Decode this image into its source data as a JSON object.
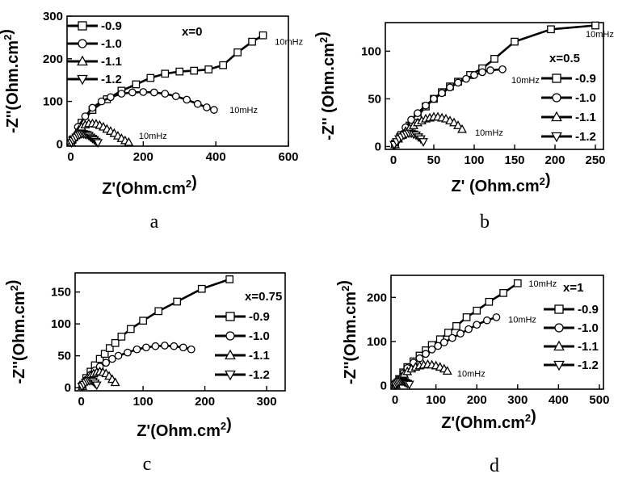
{
  "chart_data": [
    {
      "type": "scatter",
      "panel_label": "a",
      "tag": "x=0",
      "xlabel": "Z'(Ohm.cm²)",
      "ylabel": "-Z''(Ohm.cm²)",
      "xlim": [
        -10,
        600
      ],
      "ylim": [
        -5,
        300
      ],
      "xticks": [
        0,
        200,
        400,
        600
      ],
      "yticks": [
        0,
        100,
        200,
        300
      ],
      "legend_position": "top-left",
      "series": [
        {
          "name": "-0.9",
          "marker": "square",
          "x": [
            5,
            30,
            60,
            100,
            140,
            180,
            220,
            260,
            300,
            340,
            380,
            420,
            460,
            500,
            530
          ],
          "y": [
            10,
            50,
            80,
            105,
            125,
            140,
            155,
            165,
            170,
            172,
            175,
            185,
            215,
            240,
            255
          ]
        },
        {
          "name": "-1.0",
          "marker": "circle",
          "x": [
            5,
            20,
            40,
            60,
            85,
            110,
            140,
            170,
            200,
            230,
            260,
            290,
            320,
            350,
            375,
            395
          ],
          "y": [
            8,
            40,
            65,
            85,
            100,
            110,
            118,
            121,
            122,
            121,
            118,
            112,
            104,
            94,
            86,
            80
          ]
        },
        {
          "name": "-1.1",
          "marker": "triangle-up",
          "x": [
            2,
            8,
            15,
            22,
            30,
            40,
            50,
            60,
            70,
            80,
            90,
            100,
            110,
            120,
            130,
            140,
            150,
            160
          ],
          "y": [
            3,
            15,
            25,
            33,
            40,
            45,
            48,
            48,
            47,
            44,
            40,
            35,
            30,
            25,
            19,
            13,
            8,
            4
          ]
        },
        {
          "name": "-1.2",
          "marker": "triangle-down",
          "x": [
            2,
            6,
            10,
            15,
            20,
            25,
            30,
            35,
            40,
            45,
            50,
            55,
            60,
            65,
            70,
            75
          ],
          "y": [
            3,
            8,
            12,
            16,
            20,
            22,
            24,
            24,
            23,
            22,
            20,
            16,
            13,
            10,
            6,
            3
          ]
        }
      ],
      "annotations": [
        {
          "text": "10mHz",
          "x": 545,
          "y": 240
        },
        {
          "text": "10mHz",
          "x": 420,
          "y": 80
        },
        {
          "text": "10mHz",
          "x": 170,
          "y": 20
        }
      ]
    },
    {
      "type": "scatter",
      "panel_label": "b",
      "tag": "x=0.5",
      "xlabel": "Z' (Ohm.cm²)",
      "ylabel": "-Z'' (Ohm.cm²)",
      "xlim": [
        -10,
        260
      ],
      "ylim": [
        -3,
        130
      ],
      "xticks": [
        0,
        50,
        100,
        150,
        200,
        250
      ],
      "yticks": [
        0,
        50,
        100
      ],
      "legend_position": "right",
      "series": [
        {
          "name": "-0.9",
          "marker": "square",
          "x": [
            2,
            10,
            20,
            30,
            40,
            50,
            60,
            70,
            80,
            95,
            110,
            125,
            150,
            195,
            250
          ],
          "y": [
            3,
            12,
            22,
            32,
            42,
            50,
            57,
            63,
            68,
            75,
            82,
            92,
            110,
            123,
            127
          ]
        },
        {
          "name": "-1.0",
          "marker": "circle",
          "x": [
            2,
            8,
            15,
            22,
            30,
            40,
            50,
            60,
            70,
            80,
            90,
            100,
            110,
            120,
            135
          ],
          "y": [
            2,
            12,
            20,
            28,
            35,
            43,
            50,
            56,
            62,
            67,
            71,
            75,
            78,
            80,
            81
          ]
        },
        {
          "name": "-1.1",
          "marker": "triangle-up",
          "x": [
            2,
            6,
            10,
            15,
            20,
            25,
            30,
            35,
            40,
            45,
            50,
            55,
            60,
            65,
            70,
            75,
            80,
            85
          ],
          "y": [
            2,
            8,
            12,
            16,
            19,
            22,
            25,
            27,
            29,
            30,
            31,
            31,
            30,
            29,
            27,
            25,
            22,
            18
          ]
        },
        {
          "name": "-1.2",
          "marker": "triangle-down",
          "x": [
            1,
            4,
            7,
            10,
            13,
            16,
            19,
            22,
            25,
            28,
            31,
            34,
            37
          ],
          "y": [
            2,
            5,
            8,
            10,
            12,
            13,
            14,
            14,
            13,
            12,
            10,
            8,
            5
          ]
        }
      ],
      "annotations": [
        {
          "text": "10mHz",
          "x": 230,
          "y": 118
        },
        {
          "text": "10mHz",
          "x": 138,
          "y": 70
        },
        {
          "text": "10mHz",
          "x": 93,
          "y": 15
        }
      ]
    },
    {
      "type": "scatter",
      "panel_label": "c",
      "tag": "x=0.75",
      "xlabel": "Z'(Ohm.cm²)",
      "ylabel": "-Z''(Ohm.cm²)",
      "xlim": [
        -10,
        330
      ],
      "ylim": [
        -5,
        180
      ],
      "xticks": [
        0,
        100,
        200,
        300
      ],
      "yticks": [
        0,
        50,
        100,
        150
      ],
      "legend_position": "right",
      "series": [
        {
          "name": "-0.9",
          "marker": "square",
          "x": [
            2,
            8,
            15,
            22,
            30,
            38,
            46,
            55,
            65,
            80,
            100,
            125,
            155,
            195,
            240
          ],
          "y": [
            3,
            15,
            25,
            35,
            45,
            53,
            62,
            70,
            80,
            92,
            105,
            120,
            135,
            155,
            170
          ]
        },
        {
          "name": "-1.0",
          "marker": "circle",
          "x": [
            2,
            8,
            15,
            22,
            30,
            40,
            50,
            60,
            75,
            90,
            105,
            120,
            135,
            150,
            165,
            178
          ],
          "y": [
            2,
            12,
            20,
            27,
            33,
            39,
            45,
            50,
            55,
            60,
            63,
            65,
            66,
            65,
            63,
            60
          ]
        },
        {
          "name": "-1.1",
          "marker": "triangle-up",
          "x": [
            2,
            6,
            10,
            15,
            20,
            25,
            30,
            35,
            40,
            45,
            50,
            55
          ],
          "y": [
            2,
            10,
            15,
            19,
            22,
            24,
            25,
            24,
            22,
            18,
            13,
            8
          ]
        },
        {
          "name": "-1.2",
          "marker": "triangle-down",
          "x": [
            1,
            4,
            7,
            10,
            13,
            16,
            19,
            22,
            25
          ],
          "y": [
            2,
            5,
            8,
            10,
            11,
            11,
            10,
            7,
            4
          ]
        }
      ],
      "annotations": []
    },
    {
      "type": "scatter",
      "panel_label": "d",
      "tag": "x=1",
      "xlabel": "Z'(Ohm.cm²)",
      "ylabel": "-Z''(Ohm.cm²)",
      "xlim": [
        -10,
        510
      ],
      "ylim": [
        -8,
        250
      ],
      "xticks": [
        0,
        100,
        200,
        300,
        400,
        500
      ],
      "yticks": [
        0,
        100,
        200
      ],
      "legend_position": "top-right",
      "series": [
        {
          "name": "-0.9",
          "marker": "square",
          "x": [
            2,
            10,
            20,
            30,
            45,
            60,
            75,
            90,
            110,
            130,
            150,
            175,
            200,
            230,
            265,
            300
          ],
          "y": [
            3,
            15,
            30,
            42,
            55,
            68,
            80,
            92,
            105,
            120,
            135,
            155,
            170,
            190,
            210,
            232
          ]
        },
        {
          "name": "-1.0",
          "marker": "circle",
          "x": [
            2,
            10,
            20,
            30,
            45,
            60,
            75,
            90,
            105,
            120,
            140,
            160,
            180,
            200,
            225,
            248
          ],
          "y": [
            2,
            15,
            28,
            40,
            52,
            62,
            72,
            82,
            90,
            98,
            108,
            118,
            128,
            138,
            148,
            155
          ]
        },
        {
          "name": "-1.1",
          "marker": "triangle-up",
          "x": [
            2,
            8,
            15,
            22,
            30,
            40,
            50,
            60,
            70,
            80,
            90,
            100,
            110,
            120,
            128
          ],
          "y": [
            2,
            12,
            20,
            26,
            32,
            38,
            42,
            45,
            47,
            48,
            47,
            45,
            42,
            38,
            33
          ]
        },
        {
          "name": "-1.2",
          "marker": "triangle-down",
          "x": [
            1,
            4,
            7,
            10,
            14,
            18,
            22,
            26,
            30,
            35
          ],
          "y": [
            2,
            5,
            7,
            9,
            10,
            10,
            9,
            7,
            5,
            3
          ]
        }
      ],
      "annotations": [
        {
          "text": "10mHz",
          "x": 315,
          "y": 232
        },
        {
          "text": "10mHz",
          "x": 265,
          "y": 150
        },
        {
          "text": "10mHz",
          "x": 140,
          "y": 28
        }
      ]
    }
  ]
}
